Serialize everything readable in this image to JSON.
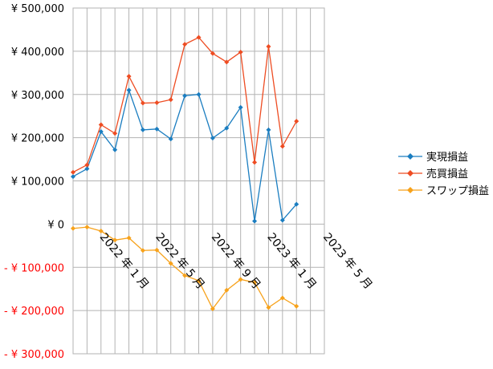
{
  "chart_data": {
    "type": "line",
    "x": [
      "2021-11",
      "2021-12",
      "2022-01",
      "2022-02",
      "2022-03",
      "2022-04",
      "2022-05",
      "2022-06",
      "2022-07",
      "2022-08",
      "2022-09",
      "2022-10",
      "2022-11",
      "2022-12",
      "2023-01",
      "2023-02",
      "2023-03",
      "2023-04",
      "2023-05"
    ],
    "x_tick_labels": [
      {
        "index": 2,
        "label": "2022 年 1 月"
      },
      {
        "index": 6,
        "label": "2022 年 5 月"
      },
      {
        "index": 10,
        "label": "2022 年 9 月"
      },
      {
        "index": 14,
        "label": "2023 年 1 月"
      },
      {
        "index": 18,
        "label": "2023 年 5 月"
      }
    ],
    "y_tick_labels": [
      {
        "value": 500000,
        "label": "¥ 500,000"
      },
      {
        "value": 400000,
        "label": "¥ 400,000"
      },
      {
        "value": 300000,
        "label": "¥ 300,000"
      },
      {
        "value": 200000,
        "label": "¥ 200,000"
      },
      {
        "value": 100000,
        "label": "¥ 100,000"
      },
      {
        "value": 0,
        "label": "¥ 0"
      },
      {
        "value": -100000,
        "label": "- ¥ 100,000"
      },
      {
        "value": -200000,
        "label": "- ¥ 200,000"
      },
      {
        "value": -300000,
        "label": "- ¥ 300,000"
      }
    ],
    "ylim": [
      -300000,
      500000
    ],
    "grid": true,
    "legend_position": "right",
    "negative_label_color": "#ff0000",
    "series": [
      {
        "name": "実現損益",
        "color": "#1a7dc0",
        "values": [
          110000,
          128000,
          214000,
          172000,
          310000,
          218000,
          220000,
          197000,
          297000,
          300000,
          199000,
          222000,
          270000,
          7000,
          218000,
          9000,
          46000,
          null,
          null
        ]
      },
      {
        "name": "売買損益",
        "color": "#ee4c22",
        "values": [
          120000,
          137000,
          230000,
          210000,
          342000,
          280000,
          281000,
          288000,
          416000,
          432000,
          395000,
          375000,
          398000,
          143000,
          411000,
          180000,
          238000,
          null,
          null
        ]
      },
      {
        "name": "スワップ損益",
        "color": "#f7a21b",
        "values": [
          -10000,
          -7000,
          -16000,
          -37000,
          -32000,
          -61000,
          -60000,
          -91000,
          -119000,
          -131000,
          -196000,
          -153000,
          -128000,
          -135000,
          -193000,
          -171000,
          -190000,
          null,
          null
        ]
      }
    ]
  }
}
